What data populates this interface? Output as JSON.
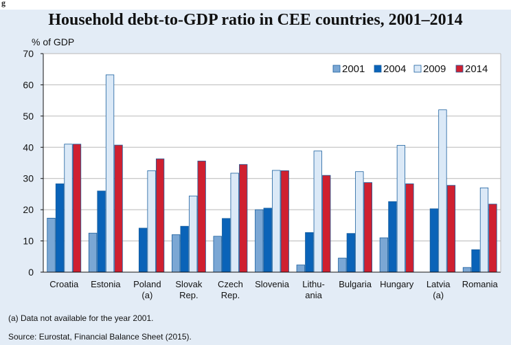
{
  "figure_tag": "g",
  "chart_data": {
    "type": "bar",
    "title": "Household debt-to-GDP ratio in CEE countries, 2001–2014",
    "ylabel": "% of GDP",
    "xlabel": "",
    "ylim": [
      0,
      70
    ],
    "yticks": [
      0,
      10,
      20,
      30,
      40,
      50,
      60,
      70
    ],
    "grid": true,
    "legend_position": "top-right",
    "categories": [
      [
        "Croatia"
      ],
      [
        "Estonia"
      ],
      [
        "Poland",
        "(a)"
      ],
      [
        "Slovak",
        "Rep."
      ],
      [
        "Czech",
        "Rep."
      ],
      [
        "Slovenia"
      ],
      [
        "Lithu-",
        "ania"
      ],
      [
        "Bulgaria"
      ],
      [
        "Hungary"
      ],
      [
        "Latvia",
        "(a)"
      ],
      [
        "Romania"
      ]
    ],
    "series": [
      {
        "name": "2001",
        "color": "#7ba7d4",
        "values": [
          17.3,
          12.5,
          null,
          12.0,
          11.5,
          20.0,
          2.3,
          4.5,
          11.0,
          null,
          1.5
        ]
      },
      {
        "name": "2004",
        "color": "#0a63b8",
        "values": [
          28.3,
          26.0,
          14.1,
          14.7,
          17.2,
          20.5,
          12.7,
          12.4,
          22.6,
          20.3,
          7.2
        ]
      },
      {
        "name": "2009",
        "color": "#dbe9f7",
        "values": [
          41.0,
          63.2,
          32.5,
          24.4,
          31.7,
          32.6,
          38.8,
          32.2,
          40.6,
          52.0,
          27.0
        ]
      },
      {
        "name": "2014",
        "color": "#cf2030",
        "values": [
          41.0,
          40.7,
          36.3,
          35.6,
          34.5,
          32.5,
          31.0,
          28.7,
          28.3,
          27.8,
          21.8
        ]
      }
    ]
  },
  "footnotes": [
    "(a) Data not available for the year 2001.",
    "Source: Eurostat, Financial Balance Sheet (2015)."
  ]
}
